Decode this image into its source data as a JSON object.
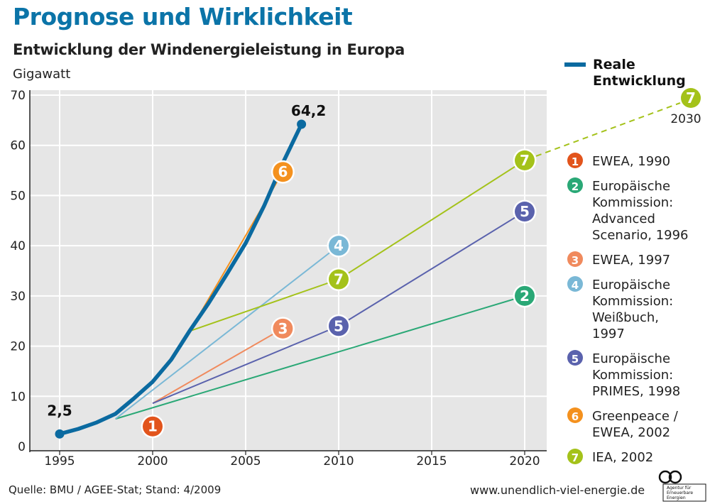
{
  "chart_data": {
    "type": "line",
    "title": "Prognose und Wirklichkeit",
    "subtitle": "Entwicklung der Windenergieleistung in Europa",
    "ylabel": "Gigawatt",
    "xlabel": "",
    "xlim": [
      1994,
      2021
    ],
    "ylim": [
      0,
      70
    ],
    "x_ticks": [
      1995,
      2000,
      2005,
      2010,
      2015,
      2020
    ],
    "y_ticks": [
      0,
      10,
      20,
      30,
      40,
      50,
      60,
      70
    ],
    "grid": true,
    "real_series": {
      "legend_label": [
        "Reale",
        "Entwicklung"
      ],
      "color": "#0b6aa0",
      "points": [
        [
          1995,
          2.5
        ],
        [
          1996,
          3.5
        ],
        [
          1997,
          4.8
        ],
        [
          1998,
          6.5
        ],
        [
          1999,
          9.6
        ],
        [
          2000,
          12.9
        ],
        [
          2001,
          17.3
        ],
        [
          2002,
          23.1
        ],
        [
          2003,
          28.5
        ],
        [
          2004,
          34.4
        ],
        [
          2005,
          40.5
        ],
        [
          2006,
          48.0
        ],
        [
          2007,
          56.5
        ],
        [
          2008,
          64.2
        ]
      ],
      "start_label": "2,5",
      "end_label": "64,2"
    },
    "forecasts": [
      {
        "id": "1",
        "color": "#e2541c",
        "legend": [
          "EWEA, 1990"
        ],
        "points": [],
        "badge": [
          2000,
          4
        ]
      },
      {
        "id": "2",
        "color": "#2aa876",
        "legend": [
          "Europäische",
          "Kommission:",
          "Advanced",
          "Scenario, 1996"
        ],
        "points": [
          [
            1998,
            5.5
          ],
          [
            2020,
            30
          ]
        ],
        "badge": [
          2020,
          30
        ]
      },
      {
        "id": "3",
        "color": "#f08a5d",
        "legend": [
          "EWEA, 1997"
        ],
        "points": [
          [
            2000,
            8.6
          ],
          [
            2007,
            23.5
          ]
        ],
        "badge": [
          2007,
          23.5
        ]
      },
      {
        "id": "4",
        "color": "#7ab8d6",
        "legend": [
          "Europäische",
          "Kommission:",
          "Weißbuch,",
          "1997"
        ],
        "points": [
          [
            1998,
            5.5
          ],
          [
            2010,
            40
          ]
        ],
        "badge": [
          2010,
          40
        ]
      },
      {
        "id": "5",
        "color": "#5a62ad",
        "legend": [
          "Europäische",
          "Kommission:",
          "PRIMES, 1998"
        ],
        "points": [
          [
            2000,
            8.6
          ],
          [
            2010,
            24
          ],
          [
            2020,
            46.8
          ]
        ],
        "badge": [
          2010,
          24
        ],
        "badge2": [
          2020,
          46.8
        ]
      },
      {
        "id": "6",
        "color": "#f4911e",
        "legend": [
          "Greenpeace /",
          "EWEA, 2002"
        ],
        "points": [
          [
            2002,
            23
          ],
          [
            2007,
            54.7
          ]
        ],
        "badge": [
          2007,
          54.7
        ]
      },
      {
        "id": "7",
        "color": "#a4c21a",
        "legend": [
          "IEA, 2002"
        ],
        "points": [
          [
            2002,
            23
          ],
          [
            2010,
            33.3
          ],
          [
            2020,
            57
          ]
        ],
        "badge": [
          2010,
          33.3
        ],
        "badge2": [
          2020,
          57
        ],
        "extension_to": [
          2030,
          68
        ],
        "extension_label": "2030"
      }
    ],
    "source": "Quelle: BMU / AGEE-Stat; Stand: 4/2009",
    "website": "www.unendlich-viel-energie.de",
    "logo_text": [
      "Agentur für",
      "Erneuerbare",
      "Energien"
    ]
  }
}
